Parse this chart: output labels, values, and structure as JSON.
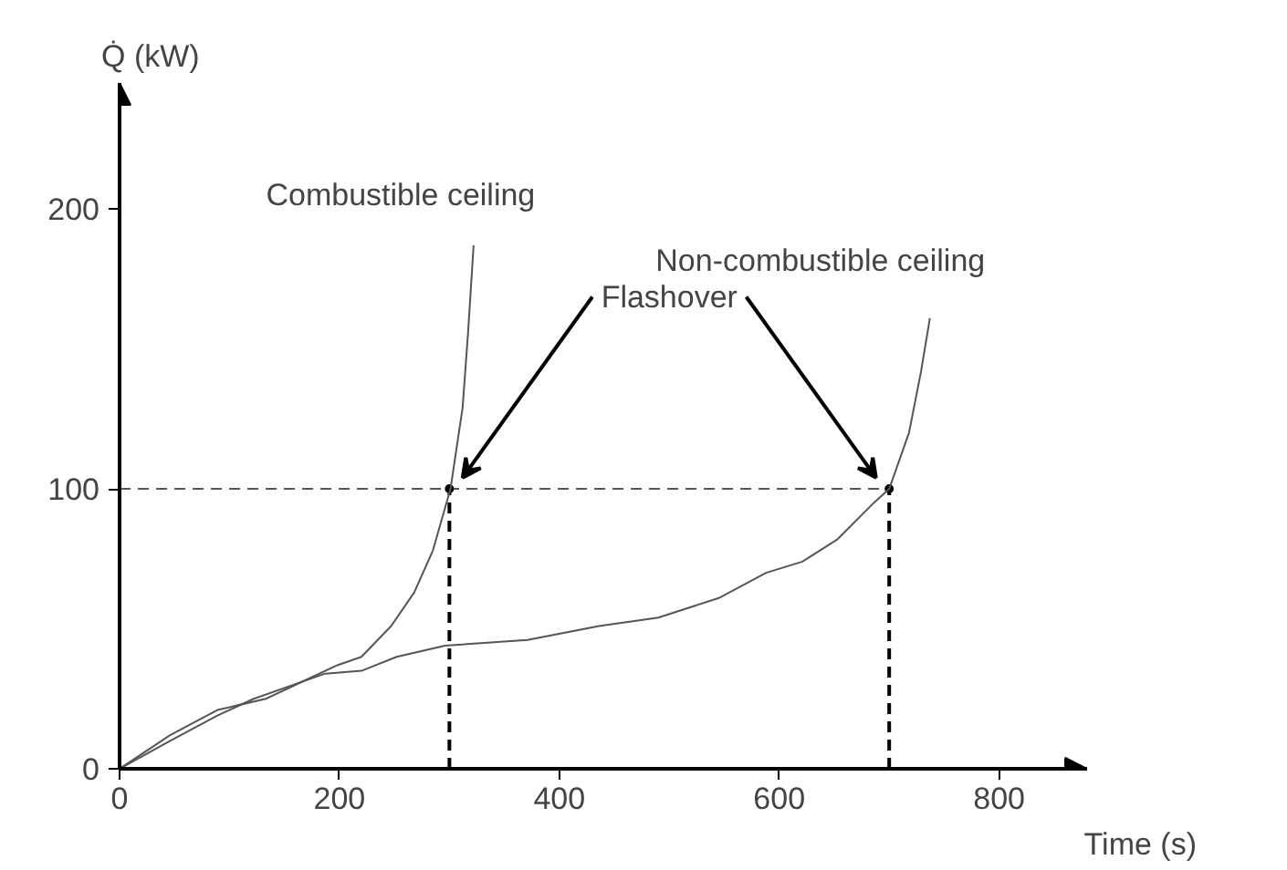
{
  "chart_data": {
    "type": "line",
    "xlabel": "Time (s)",
    "ylabel": "Q̇ (kW)",
    "xlim": [
      0,
      880
    ],
    "ylim": [
      0,
      245
    ],
    "xticks": [
      0,
      200,
      400,
      600,
      800
    ],
    "yticks": [
      0,
      100,
      200
    ],
    "grid": false,
    "marker": "none",
    "line_style": "solid",
    "series": [
      {
        "name": "Combustible ceiling",
        "color": "#555555",
        "x": [
          0,
          46,
          89,
          133,
          171,
          198,
          220,
          247,
          268,
          285,
          301,
          312,
          317,
          322
        ],
        "values": [
          0,
          12,
          21,
          25,
          32,
          37,
          40,
          51,
          63,
          78,
          100,
          129,
          156,
          187
        ]
      },
      {
        "name": "Non-combustible ceiling",
        "color": "#555555",
        "x": [
          0,
          46,
          89,
          122,
          187,
          220,
          252,
          296,
          371,
          436,
          490,
          545,
          588,
          621,
          653,
          686,
          700,
          718,
          729,
          737
        ],
        "values": [
          0,
          10,
          19,
          25,
          34,
          35,
          40,
          44,
          46,
          51,
          54,
          61,
          70,
          74,
          82,
          95,
          100,
          120,
          142,
          161
        ]
      }
    ],
    "ref_lines": [
      {
        "axis": "y",
        "value": 100,
        "line_style": "dashed",
        "color": "#555555"
      },
      {
        "axis": "x",
        "value": 300,
        "line_style": "dashed",
        "color": "#000000"
      },
      {
        "axis": "x",
        "value": 700,
        "line_style": "dashed",
        "color": "#000000"
      }
    ],
    "annotations": [
      "Flashover"
    ]
  }
}
